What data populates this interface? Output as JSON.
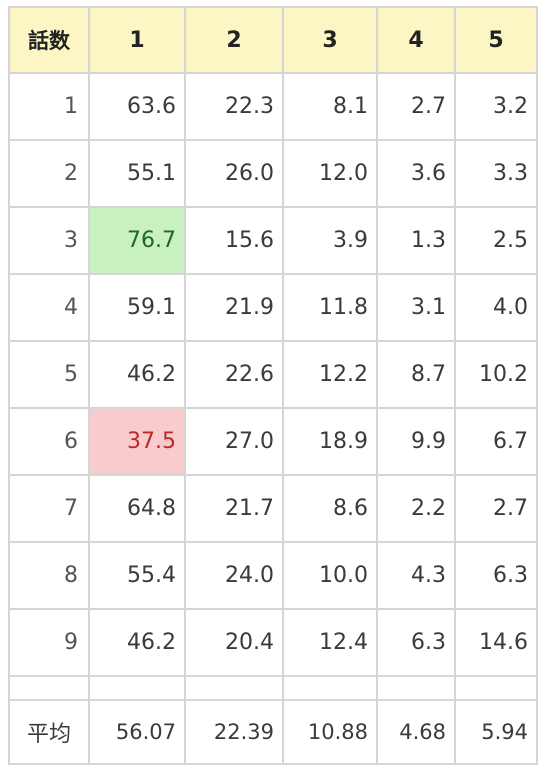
{
  "table": {
    "headers": [
      "話数",
      "1",
      "2",
      "3",
      "4",
      "5"
    ],
    "rows": [
      {
        "episode": "1",
        "values": [
          "63.6",
          "22.3",
          "8.1",
          "2.7",
          "3.2"
        ]
      },
      {
        "episode": "2",
        "values": [
          "55.1",
          "26.0",
          "12.0",
          "3.6",
          "3.3"
        ]
      },
      {
        "episode": "3",
        "values": [
          "76.7",
          "15.6",
          "3.9",
          "1.3",
          "2.5"
        ]
      },
      {
        "episode": "4",
        "values": [
          "59.1",
          "21.9",
          "11.8",
          "3.1",
          "4.0"
        ]
      },
      {
        "episode": "5",
        "values": [
          "46.2",
          "22.6",
          "12.2",
          "8.7",
          "10.2"
        ]
      },
      {
        "episode": "6",
        "values": [
          "37.5",
          "27.0",
          "18.9",
          "9.9",
          "6.7"
        ]
      },
      {
        "episode": "7",
        "values": [
          "64.8",
          "21.7",
          "8.6",
          "2.2",
          "2.7"
        ]
      },
      {
        "episode": "8",
        "values": [
          "55.4",
          "24.0",
          "10.0",
          "4.3",
          "6.3"
        ]
      },
      {
        "episode": "9",
        "values": [
          "46.2",
          "20.4",
          "12.4",
          "6.3",
          "14.6"
        ]
      }
    ],
    "average": {
      "label": "平均",
      "values": [
        "56.07",
        "22.39",
        "10.88",
        "4.68",
        "5.94"
      ]
    }
  },
  "colors": {
    "header_background": "#fbf6c4",
    "highlight_high": "#c8f0c0",
    "highlight_low": "#f8cccc"
  }
}
